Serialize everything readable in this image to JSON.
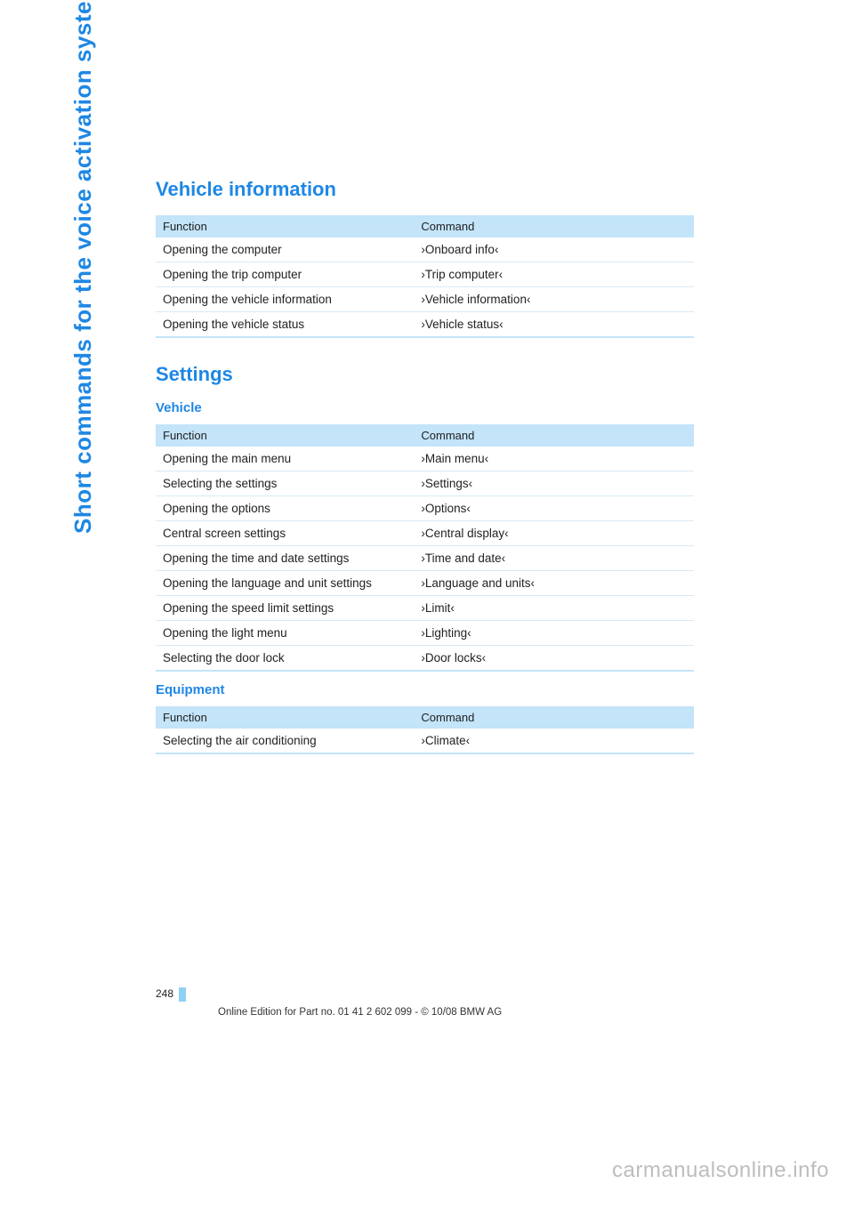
{
  "sidebar": {
    "label": "Short commands for the voice activation system",
    "color": "#1e87e4"
  },
  "colors": {
    "heading": "#1e87e4",
    "table_header_bg": "#c3e4f9",
    "row_border": "#d9eaf5",
    "page_tab": "#8fd0f4",
    "watermark": "#bdbdbd"
  },
  "sections": [
    {
      "title": "Vehicle information",
      "level": 1,
      "tables": [
        {
          "header": {
            "function": "Function",
            "command": "Command"
          },
          "rows": [
            {
              "function": "Opening the computer",
              "command": "›Onboard info‹"
            },
            {
              "function": "Opening the trip computer",
              "command": "›Trip computer‹"
            },
            {
              "function": "Opening the vehicle information",
              "command": "›Vehicle information‹"
            },
            {
              "function": "Opening the vehicle status",
              "command": "›Vehicle status‹"
            }
          ]
        }
      ]
    },
    {
      "title": "Settings",
      "level": 1,
      "subsections": [
        {
          "title": "Vehicle",
          "level": 2,
          "tables": [
            {
              "header": {
                "function": "Function",
                "command": "Command"
              },
              "rows": [
                {
                  "function": "Opening the main menu",
                  "command": "›Main menu‹"
                },
                {
                  "function": "Selecting the settings",
                  "command": "›Settings‹"
                },
                {
                  "function": "Opening the options",
                  "command": "›Options‹"
                },
                {
                  "function": "Central screen settings",
                  "command": "›Central display‹"
                },
                {
                  "function": "Opening the time and date settings",
                  "command": "›Time and date‹"
                },
                {
                  "function": "Opening the language and unit settings",
                  "command": "›Language and units‹"
                },
                {
                  "function": "Opening the speed limit settings",
                  "command": "›Limit‹"
                },
                {
                  "function": "Opening the light menu",
                  "command": "›Lighting‹"
                },
                {
                  "function": "Selecting the door lock",
                  "command": "›Door locks‹"
                }
              ]
            }
          ]
        },
        {
          "title": "Equipment",
          "level": 2,
          "tables": [
            {
              "header": {
                "function": "Function",
                "command": "Command"
              },
              "rows": [
                {
                  "function": "Selecting the air conditioning",
                  "command": "›Climate‹"
                }
              ]
            }
          ]
        }
      ]
    }
  ],
  "footer": {
    "page_number": "248",
    "edition_line": "Online Edition for Part no. 01 41 2 602 099 - © 10/08 BMW AG"
  },
  "watermark": "carmanualsonline.info"
}
